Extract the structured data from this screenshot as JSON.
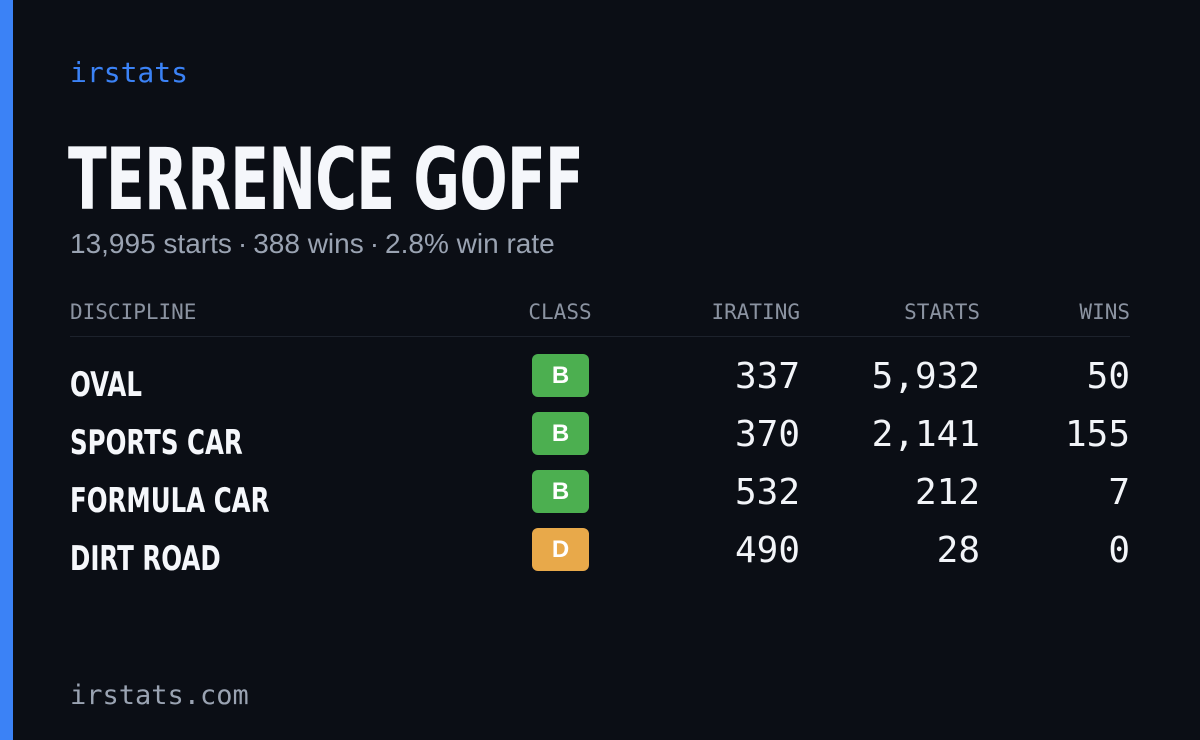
{
  "brand": "irstats",
  "driver": {
    "name": "TERRENCE GOFF",
    "starts": "13,995 starts",
    "wins": "388 wins",
    "win_rate": "2.8% win rate",
    "separator": "·"
  },
  "table": {
    "headers": {
      "discipline": "DISCIPLINE",
      "class": "CLASS",
      "irating": "IRATING",
      "starts": "STARTS",
      "wins": "WINS"
    },
    "rows": [
      {
        "discipline": "OVAL",
        "class": "B",
        "irating": "337",
        "starts": "5,932",
        "wins": "50"
      },
      {
        "discipline": "SPORTS CAR",
        "class": "B",
        "irating": "370",
        "starts": "2,141",
        "wins": "155"
      },
      {
        "discipline": "FORMULA CAR",
        "class": "B",
        "irating": "532",
        "starts": "212",
        "wins": "7"
      },
      {
        "discipline": "DIRT ROAD",
        "class": "D",
        "irating": "490",
        "starts": "28",
        "wins": "0"
      }
    ]
  },
  "class_colors": {
    "B": "#4caf50",
    "D": "#e8a94a"
  },
  "footer": "irstats.com",
  "colors": {
    "accent": "#3b82f6",
    "background": "#0b0e15"
  }
}
